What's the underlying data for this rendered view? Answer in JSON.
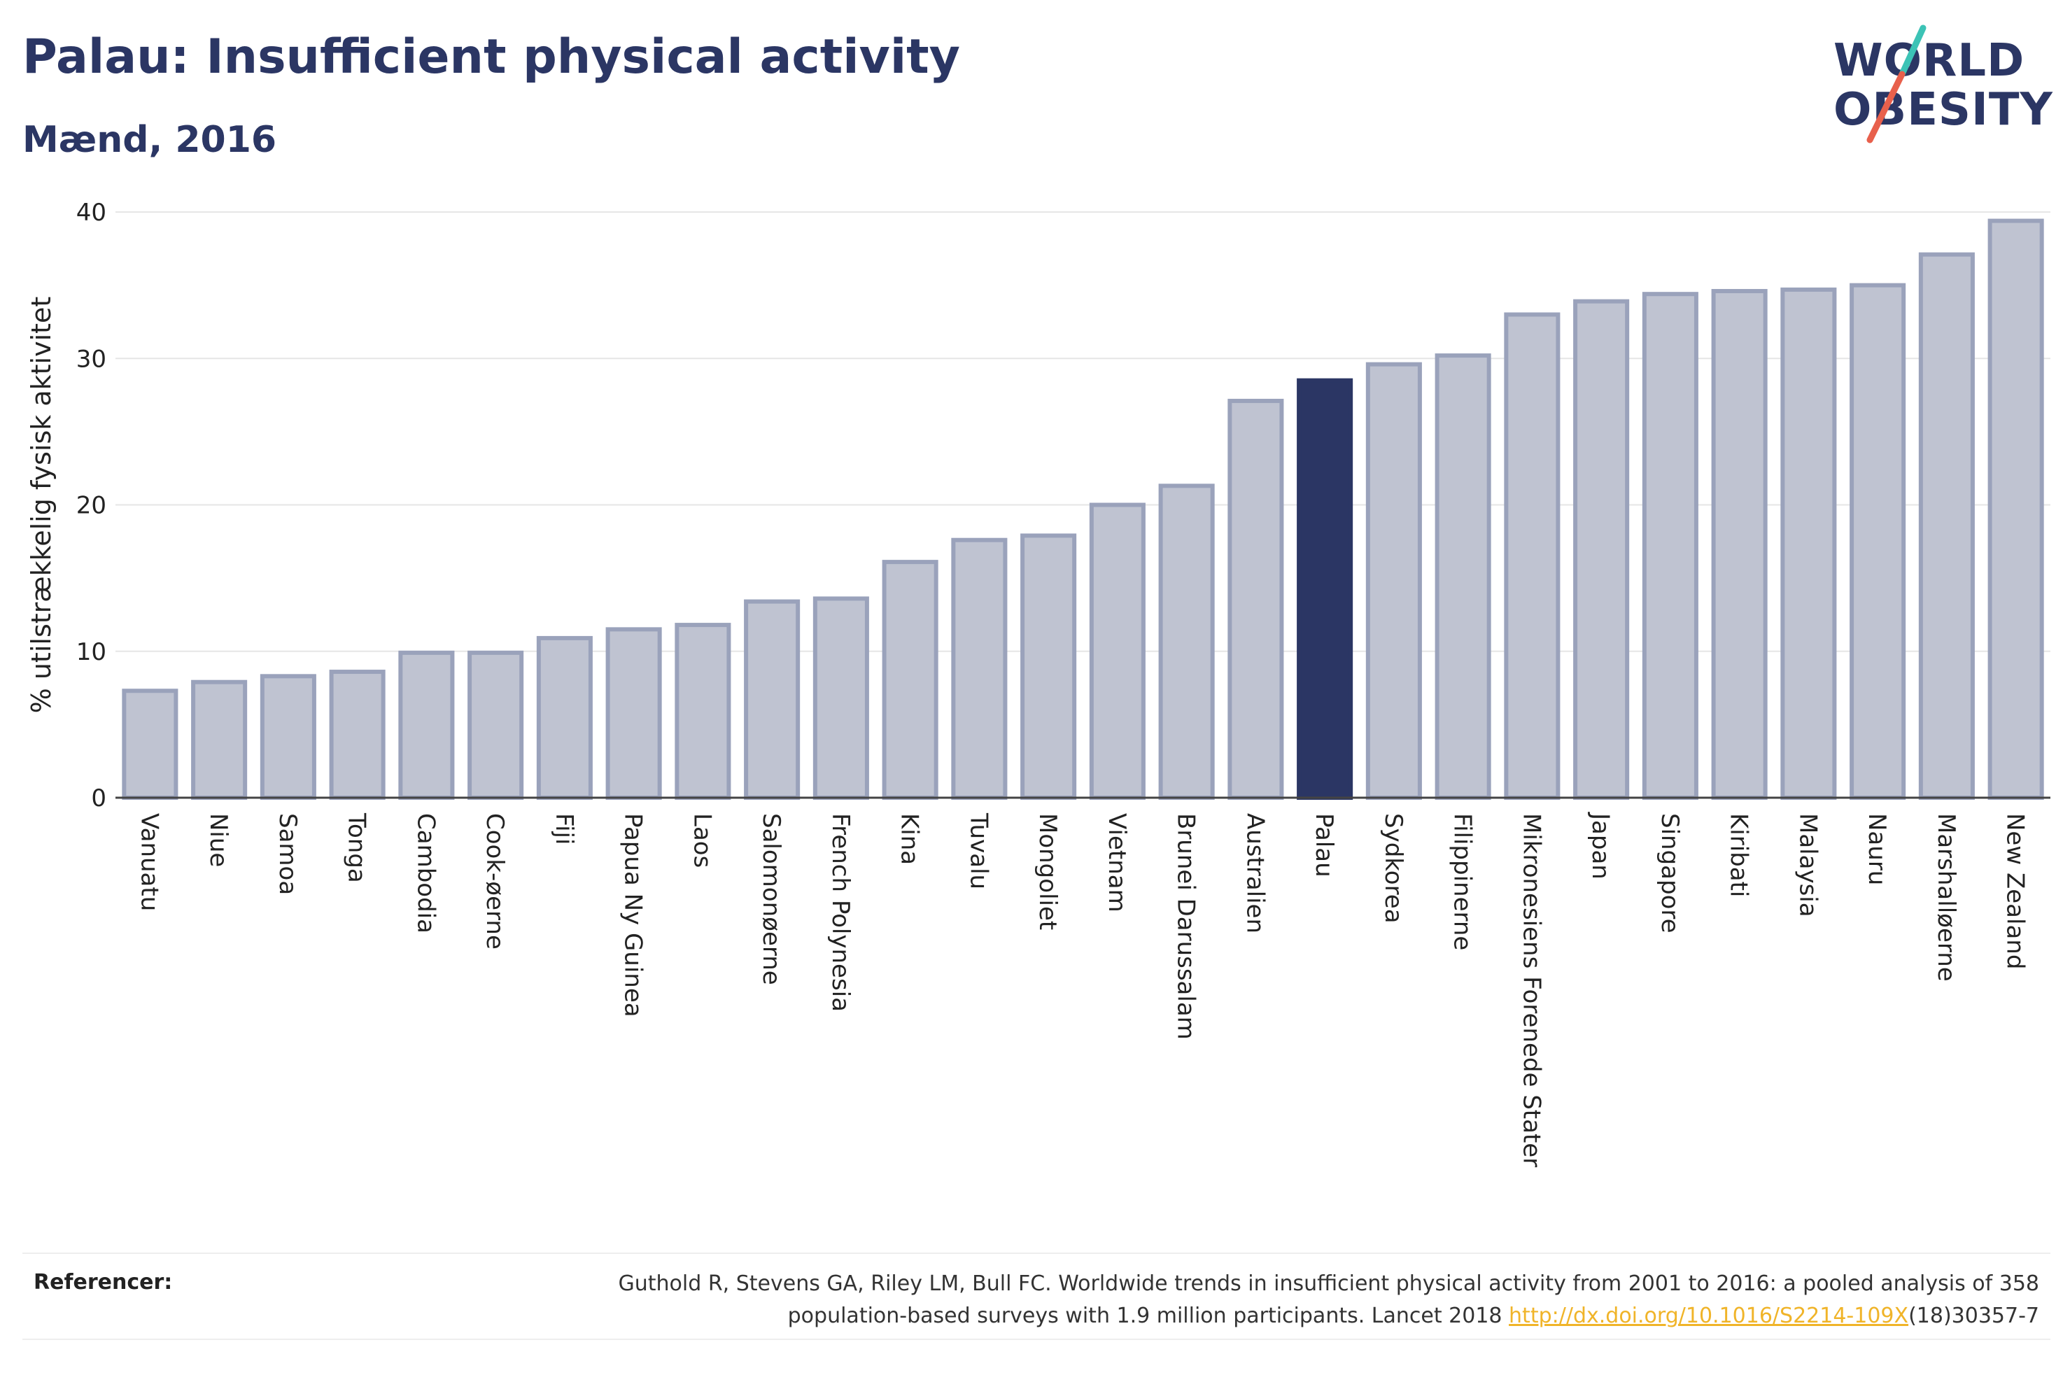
{
  "header": {
    "title": "Palau: Insufficient physical activity",
    "subtitle": "Mænd, 2016"
  },
  "logo": {
    "line1": "WORLD",
    "line2": "OBESITY",
    "slash_colors": [
      "#3cc3b6",
      "#e8604c"
    ]
  },
  "colors": {
    "bar": "#bfc3d1",
    "bar_border": "#9aa2bb",
    "highlight": "#2b3664",
    "axis_text": "#222222",
    "grid": "#e6e6e6"
  },
  "chart_data": {
    "type": "bar",
    "title": "Palau: Insufficient physical activity",
    "subtitle": "Mænd, 2016",
    "ylabel": "% utilstrækkelig fysisk aktivitet",
    "xlabel": "",
    "ylim": [
      0,
      40
    ],
    "yticks": [
      "0",
      "10",
      "20",
      "30",
      "40"
    ],
    "grid": true,
    "highlight": "Palau",
    "categories": [
      "Vanuatu",
      "Niue",
      "Samoa",
      "Tonga",
      "Cambodia",
      "Cook-øerne",
      "Fiji",
      "Papua Ny Guinea",
      "Laos",
      "Salomonøerne",
      "French Polynesia",
      "Kina",
      "Tuvalu",
      "Mongoliet",
      "Vietnam",
      "Brunei Darussalam",
      "Australien",
      "Palau",
      "Sydkorea",
      "Filippinerne",
      "Mikronesiens Forenede Stater",
      "Japan",
      "Singapore",
      "Kiribati",
      "Malaysia",
      "Nauru",
      "Marshalløerne",
      "New Zealand"
    ],
    "values": [
      7.3,
      7.9,
      8.3,
      8.6,
      9.9,
      9.9,
      10.9,
      11.5,
      11.8,
      13.4,
      13.6,
      16.1,
      17.6,
      17.9,
      20.0,
      21.3,
      27.1,
      28.5,
      29.6,
      30.2,
      33.0,
      33.9,
      34.4,
      34.6,
      34.7,
      35.0,
      37.1,
      39.4
    ]
  },
  "footer": {
    "label": "Referencer:",
    "reference_line1": "Guthold R, Stevens GA, Riley LM, Bull FC. Worldwide trends in insufficient physical activity from 2001 to 2016: a pooled analysis of 358",
    "reference_line2_prefix": "population-based surveys with 1.9 million participants. Lancet 2018 ",
    "reference_link": "http://dx.doi.org/10.1016/S2214-109X",
    "reference_line2_suffix": "(18)30357-7"
  }
}
